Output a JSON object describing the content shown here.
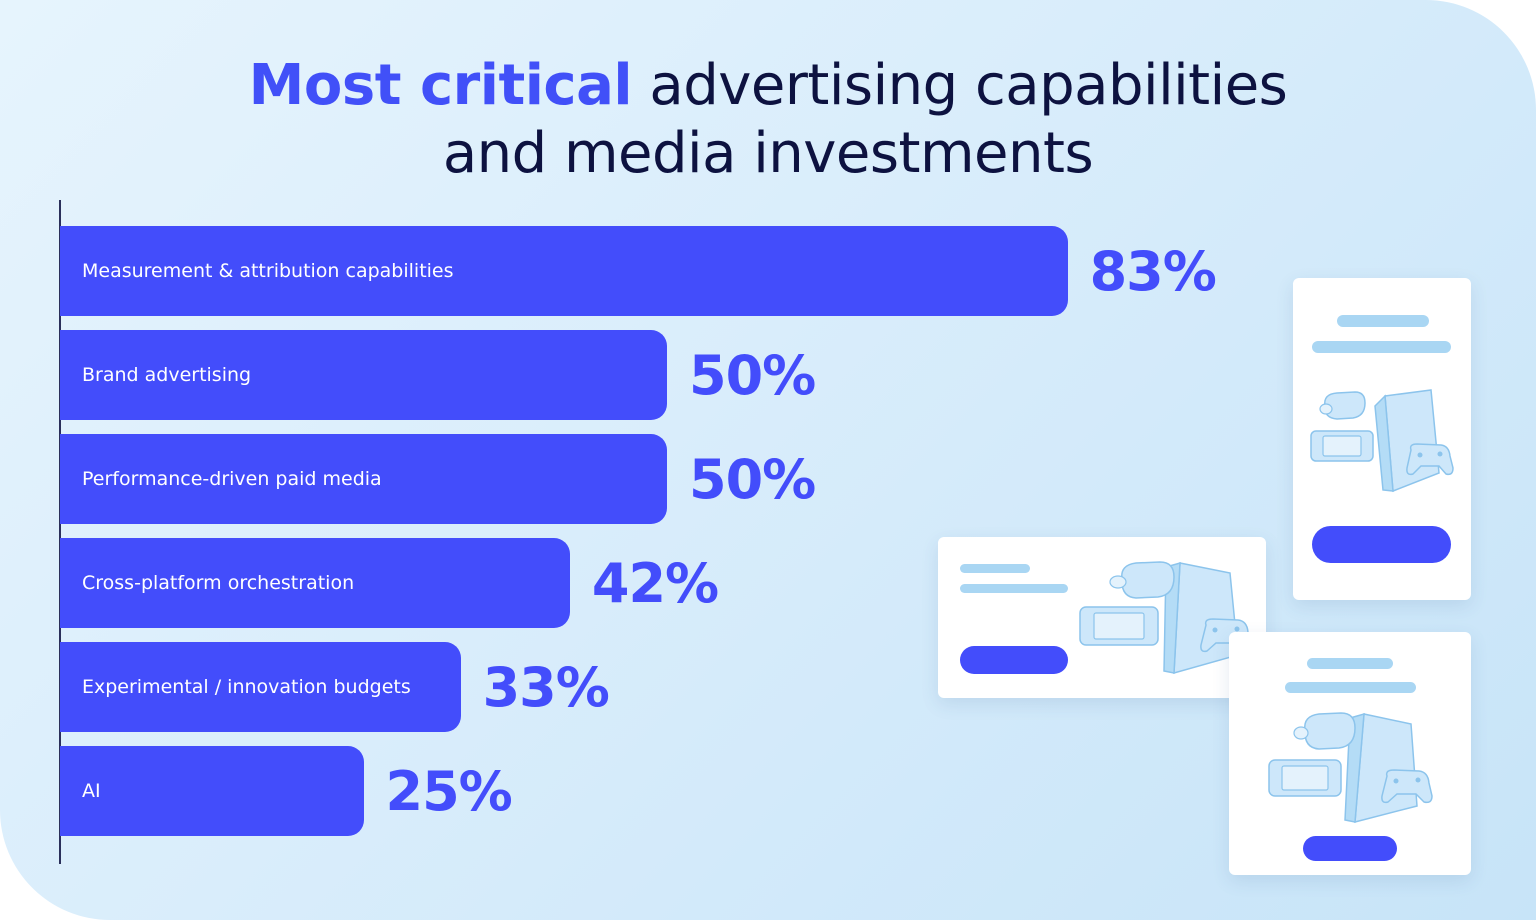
{
  "chart_data": {
    "type": "bar",
    "orientation": "horizontal",
    "title_highlight": "Most critical",
    "title_line1_rest": "advertising capabilities",
    "title_line2": "and media investments",
    "xlim": [
      0,
      100
    ],
    "unit": "%",
    "categories": [
      "Measurement & attribution capabilities",
      "Brand advertising",
      "Performance-driven paid media",
      "Cross-platform orchestration",
      "Experimental / innovation budgets",
      "AI"
    ],
    "values": [
      83,
      50,
      50,
      42,
      33,
      25
    ],
    "value_labels": [
      "83%",
      "50%",
      "50%",
      "42%",
      "33%",
      "25%"
    ]
  },
  "colors": {
    "bar": "#434dfb",
    "title_accent": "#4150f8",
    "title": "#0d1240",
    "illustration_line": "#a9d6f3",
    "illustration_button": "#434dfb"
  },
  "illustration": {
    "cards": [
      {
        "name": "ad-card-vertical-top",
        "icons": [
          "vr-headset-icon",
          "handheld-console-icon",
          "game-console-icon",
          "gamepad-icon"
        ]
      },
      {
        "name": "ad-card-horizontal",
        "icons": [
          "vr-headset-icon",
          "handheld-console-icon",
          "game-console-icon",
          "gamepad-icon"
        ]
      },
      {
        "name": "ad-card-vertical-bottom",
        "icons": [
          "vr-headset-icon",
          "handheld-console-icon",
          "game-console-icon",
          "gamepad-icon"
        ]
      }
    ]
  }
}
